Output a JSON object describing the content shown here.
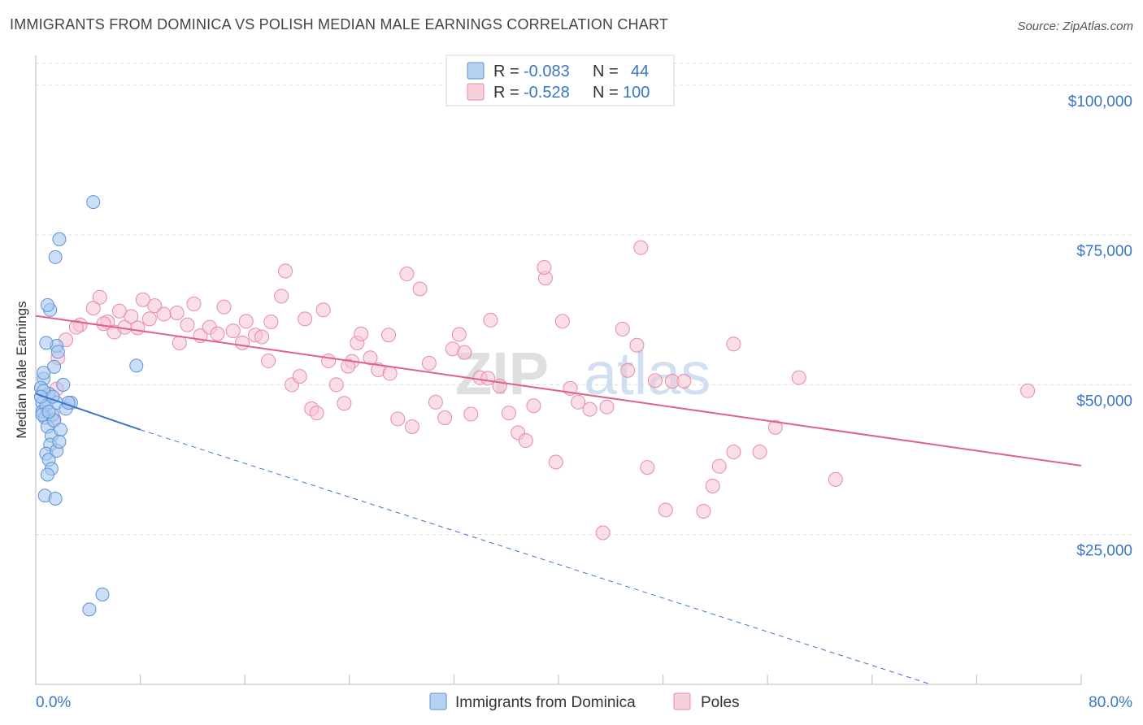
{
  "title": "IMMIGRANTS FROM DOMINICA VS POLISH MEDIAN MALE EARNINGS CORRELATION CHART",
  "source": "Source: ZipAtlas.com",
  "watermark": {
    "part1": "ZIP",
    "part2": "atlas"
  },
  "colors": {
    "blue_fill": "#a9c8ee",
    "blue_stroke": "#5b93d6",
    "blue_line": "#3a76c8",
    "pink_fill": "#f6c3d3",
    "pink_stroke": "#e88aa8",
    "pink_line": "#e0608a",
    "grid": "#dcdcdc",
    "axis_label": "#3a76c8"
  },
  "legend": {
    "series1": {
      "r_label": "R =",
      "r_value": "-0.083",
      "n_label": "N =",
      "n_value": "44"
    },
    "series2": {
      "r_label": "R =",
      "r_value": "-0.528",
      "n_label": "N =",
      "n_value": "100"
    }
  },
  "bottom_legend": {
    "series1": "Immigrants from Dominica",
    "series2": "Poles"
  },
  "chart_data": {
    "type": "scatter",
    "title": "IMMIGRANTS FROM DOMINICA VS POLISH MEDIAN MALE EARNINGS CORRELATION CHART",
    "xlabel": "",
    "ylabel": "Median Male Earnings",
    "xlim": [
      0,
      80
    ],
    "ylim": [
      0,
      105000
    ],
    "x_tick_labels": {
      "left": "0.0%",
      "right": "80.0%"
    },
    "y_ticks": [
      {
        "value": 25000,
        "label": "$25,000"
      },
      {
        "value": 50000,
        "label": "$50,000"
      },
      {
        "value": 75000,
        "label": "$75,000"
      },
      {
        "value": 100000,
        "label": "$100,000"
      }
    ],
    "series": [
      {
        "name": "Immigrants from Dominica",
        "trend": {
          "x0": 0,
          "y0": 48500,
          "x1": 8,
          "y1": 42500,
          "dash_to_x": 68.5,
          "dash_to_y": 0
        },
        "points": [
          [
            0.5,
            47000
          ],
          [
            0.5,
            45500
          ],
          [
            0.6,
            51000
          ],
          [
            0.4,
            49500
          ],
          [
            0.8,
            46500
          ],
          [
            1.0,
            48500
          ],
          [
            0.7,
            44500
          ],
          [
            1.3,
            45000
          ],
          [
            1.6,
            47000
          ],
          [
            0.9,
            43000
          ],
          [
            1.2,
            41500
          ],
          [
            1.4,
            44000
          ],
          [
            1.9,
            42500
          ],
          [
            1.1,
            40000
          ],
          [
            0.8,
            38500
          ],
          [
            1.0,
            37500
          ],
          [
            1.6,
            39000
          ],
          [
            1.8,
            40500
          ],
          [
            1.2,
            36000
          ],
          [
            0.9,
            35000
          ],
          [
            0.7,
            31500
          ],
          [
            1.5,
            31000
          ],
          [
            1.1,
            62500
          ],
          [
            1.6,
            56500
          ],
          [
            1.4,
            53000
          ],
          [
            2.1,
            50000
          ],
          [
            1.7,
            55500
          ],
          [
            0.8,
            57000
          ],
          [
            0.6,
            49000
          ],
          [
            2.7,
            47000
          ],
          [
            1.8,
            74300
          ],
          [
            1.5,
            71300
          ],
          [
            4.4,
            80500
          ],
          [
            7.7,
            53200
          ],
          [
            5.1,
            15000
          ],
          [
            4.1,
            12500
          ],
          [
            0.5,
            45000
          ],
          [
            0.4,
            48000
          ],
          [
            1.0,
            45500
          ],
          [
            2.3,
            46000
          ],
          [
            0.9,
            63300
          ],
          [
            2.5,
            47000
          ],
          [
            0.6,
            52000
          ],
          [
            1.3,
            48000
          ]
        ]
      },
      {
        "name": "Poles",
        "trend": {
          "x0": 0,
          "y0": 61500,
          "x1": 80,
          "y1": 36500
        },
        "points": [
          [
            2.3,
            57500
          ],
          [
            1.7,
            54500
          ],
          [
            3.4,
            60000
          ],
          [
            4.4,
            62800
          ],
          [
            4.9,
            64600
          ],
          [
            5.5,
            60500
          ],
          [
            6.0,
            58800
          ],
          [
            6.8,
            59600
          ],
          [
            7.3,
            61400
          ],
          [
            7.8,
            59500
          ],
          [
            8.2,
            64200
          ],
          [
            8.7,
            61000
          ],
          [
            9.1,
            63200
          ],
          [
            9.8,
            61800
          ],
          [
            10.8,
            62000
          ],
          [
            11.6,
            60000
          ],
          [
            12.1,
            63500
          ],
          [
            12.6,
            58200
          ],
          [
            13.3,
            59600
          ],
          [
            13.9,
            58500
          ],
          [
            14.4,
            63000
          ],
          [
            15.1,
            59000
          ],
          [
            15.8,
            57000
          ],
          [
            16.1,
            60600
          ],
          [
            16.8,
            58300
          ],
          [
            17.3,
            58000
          ],
          [
            17.8,
            54000
          ],
          [
            18.0,
            60500
          ],
          [
            18.8,
            64800
          ],
          [
            19.1,
            69000
          ],
          [
            19.6,
            50000
          ],
          [
            20.2,
            51400
          ],
          [
            20.6,
            61000
          ],
          [
            21.1,
            46000
          ],
          [
            21.5,
            45300
          ],
          [
            22.0,
            62500
          ],
          [
            22.4,
            54000
          ],
          [
            23.0,
            50000
          ],
          [
            23.6,
            46900
          ],
          [
            24.2,
            53900
          ],
          [
            24.6,
            57000
          ],
          [
            24.9,
            58500
          ],
          [
            25.6,
            54500
          ],
          [
            26.2,
            52500
          ],
          [
            27.0,
            58300
          ],
          [
            27.7,
            44300
          ],
          [
            28.4,
            68500
          ],
          [
            28.8,
            43000
          ],
          [
            29.4,
            66000
          ],
          [
            30.1,
            53600
          ],
          [
            30.6,
            47100
          ],
          [
            31.3,
            44500
          ],
          [
            31.9,
            56000
          ],
          [
            32.4,
            58400
          ],
          [
            32.8,
            55400
          ],
          [
            33.3,
            45100
          ],
          [
            34.0,
            51200
          ],
          [
            34.8,
            60800
          ],
          [
            35.5,
            49800
          ],
          [
            36.2,
            45300
          ],
          [
            36.9,
            42000
          ],
          [
            37.5,
            40700
          ],
          [
            38.1,
            46500
          ],
          [
            39.0,
            67800
          ],
          [
            38.9,
            69600
          ],
          [
            39.8,
            37100
          ],
          [
            40.3,
            60600
          ],
          [
            40.9,
            49400
          ],
          [
            41.5,
            47100
          ],
          [
            42.4,
            45900
          ],
          [
            43.7,
            46300
          ],
          [
            44.9,
            59300
          ],
          [
            45.3,
            52400
          ],
          [
            46.3,
            72900
          ],
          [
            46.8,
            36200
          ],
          [
            47.4,
            50700
          ],
          [
            48.7,
            50600
          ],
          [
            48.2,
            29100
          ],
          [
            49.6,
            50600
          ],
          [
            51.1,
            28900
          ],
          [
            51.8,
            33100
          ],
          [
            52.3,
            36400
          ],
          [
            53.4,
            38800
          ],
          [
            55.4,
            38800
          ],
          [
            56.6,
            42900
          ],
          [
            58.4,
            51200
          ],
          [
            61.2,
            34200
          ],
          [
            75.9,
            49000
          ],
          [
            43.4,
            25300
          ],
          [
            46.0,
            56600
          ],
          [
            11.0,
            57000
          ],
          [
            3.1,
            59600
          ],
          [
            5.2,
            60200
          ],
          [
            6.4,
            62300
          ],
          [
            23.9,
            53100
          ],
          [
            27.1,
            51900
          ],
          [
            34.6,
            51100
          ],
          [
            53.4,
            56800
          ],
          [
            1.6,
            49300
          ],
          [
            1.4,
            44200
          ]
        ]
      }
    ]
  }
}
